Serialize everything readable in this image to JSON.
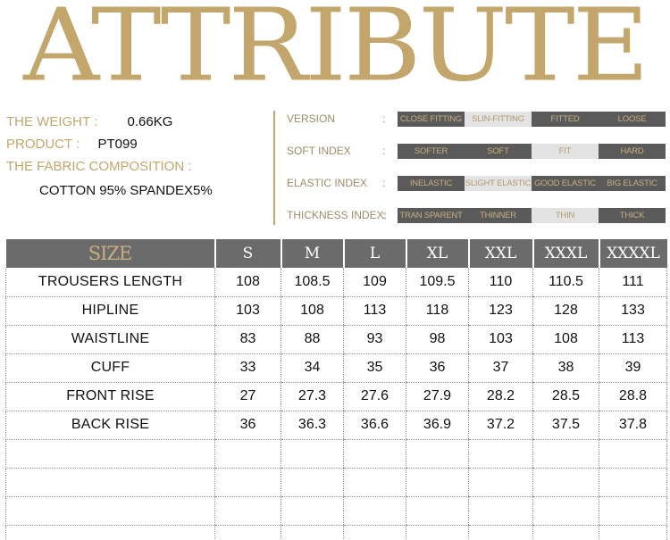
{
  "title": "ATTRIBUTE",
  "info": {
    "weight_label": "THE WEIGHT :",
    "weight_value": "0.66KG",
    "product_label": "PRODUCT :",
    "product_value": "PT099",
    "fabric_label": "THE FABRIC COMPOSITION :",
    "fabric_value": "COTTON 95% SPANDEX5%"
  },
  "attributes": [
    {
      "label": "VERSION",
      "options": [
        "CLOSE FITTING",
        "SLIN-FITTING",
        "FITTED",
        "LOOSE"
      ],
      "selected": 1
    },
    {
      "label": "SOFT INDEX",
      "options": [
        "SOFTER",
        "SOFT",
        "FIT",
        "HARD"
      ],
      "selected": 2
    },
    {
      "label": "ELASTIC INDEX",
      "options": [
        "INELASTIC",
        "SLIGHT ELASTIC",
        "GOOD ELASTIC",
        "BIG ELASTIC"
      ],
      "selected": 1
    },
    {
      "label": "THICKNESS INDEX:",
      "options": [
        "TRAN SPARENT",
        "THINNER",
        "THIN",
        "THICK"
      ],
      "selected": 2
    }
  ],
  "colon": ":",
  "table": {
    "headers": [
      "SIZE",
      "S",
      "M",
      "L",
      "XL",
      "XXL",
      "XXXL",
      "XXXXL"
    ],
    "rows": [
      [
        "TROUSERS  LENGTH",
        "108",
        "108.5",
        "109",
        "109.5",
        "110",
        "110.5",
        "111"
      ],
      [
        "HIPLINE",
        "103",
        "108",
        "113",
        "118",
        "123",
        "128",
        "133"
      ],
      [
        "WAISTLINE",
        "83",
        "88",
        "93",
        "98",
        "103",
        "108",
        "113"
      ],
      [
        "CUFF",
        "33",
        "34",
        "35",
        "36",
        "37",
        "38",
        "39"
      ],
      [
        "FRONT  RISE",
        "27",
        "27.3",
        "27.6",
        "27.9",
        "28.2",
        "28.5",
        "28.8"
      ],
      [
        "BACK  RISE",
        "36",
        "36.3",
        "36.6",
        "36.9",
        "37.2",
        "37.5",
        "37.8"
      ],
      [
        "",
        "",
        "",
        "",
        "",
        "",
        "",
        ""
      ],
      [
        "",
        "",
        "",
        "",
        "",
        "",
        "",
        ""
      ],
      [
        "",
        "",
        "",
        "",
        "",
        "",
        "",
        ""
      ],
      [
        "",
        "",
        "",
        "",
        "",
        "",
        "",
        ""
      ]
    ]
  }
}
